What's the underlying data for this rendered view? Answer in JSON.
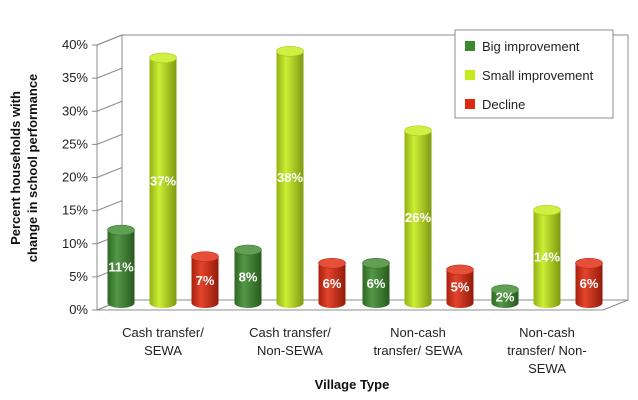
{
  "chart_data": {
    "type": "bar",
    "title": "",
    "xlabel": "Village Type",
    "ylabel_lines": [
      "Percent households with",
      "change in school performance"
    ],
    "ylim": [
      0,
      40
    ],
    "y_ticks": [
      "0%",
      "5%",
      "10%",
      "15%",
      "20%",
      "25%",
      "30%",
      "35%",
      "40%"
    ],
    "categories": [
      [
        "Cash transfer/",
        "SEWA"
      ],
      [
        "Cash transfer/",
        "Non-SEWA"
      ],
      [
        "Non-cash",
        "transfer/ SEWA"
      ],
      [
        "Non-cash",
        "transfer/ Non-",
        "SEWA"
      ]
    ],
    "series": [
      {
        "name": "Big improvement",
        "color": "#3d8a2e",
        "values": [
          11,
          8,
          6,
          2
        ],
        "labels": [
          "11%",
          "8%",
          "6%",
          "2%"
        ]
      },
      {
        "name": "Small improvement",
        "color": "#c4ec1a",
        "values": [
          37,
          38,
          26,
          14
        ],
        "labels": [
          "37%",
          "38%",
          "26%",
          "14%"
        ]
      },
      {
        "name": "Decline",
        "color": "#e02a10",
        "values": [
          7,
          6,
          5,
          6
        ],
        "labels": [
          "7%",
          "6%",
          "5%",
          "6%"
        ]
      }
    ],
    "grid": false,
    "legend_position": "top-right"
  }
}
